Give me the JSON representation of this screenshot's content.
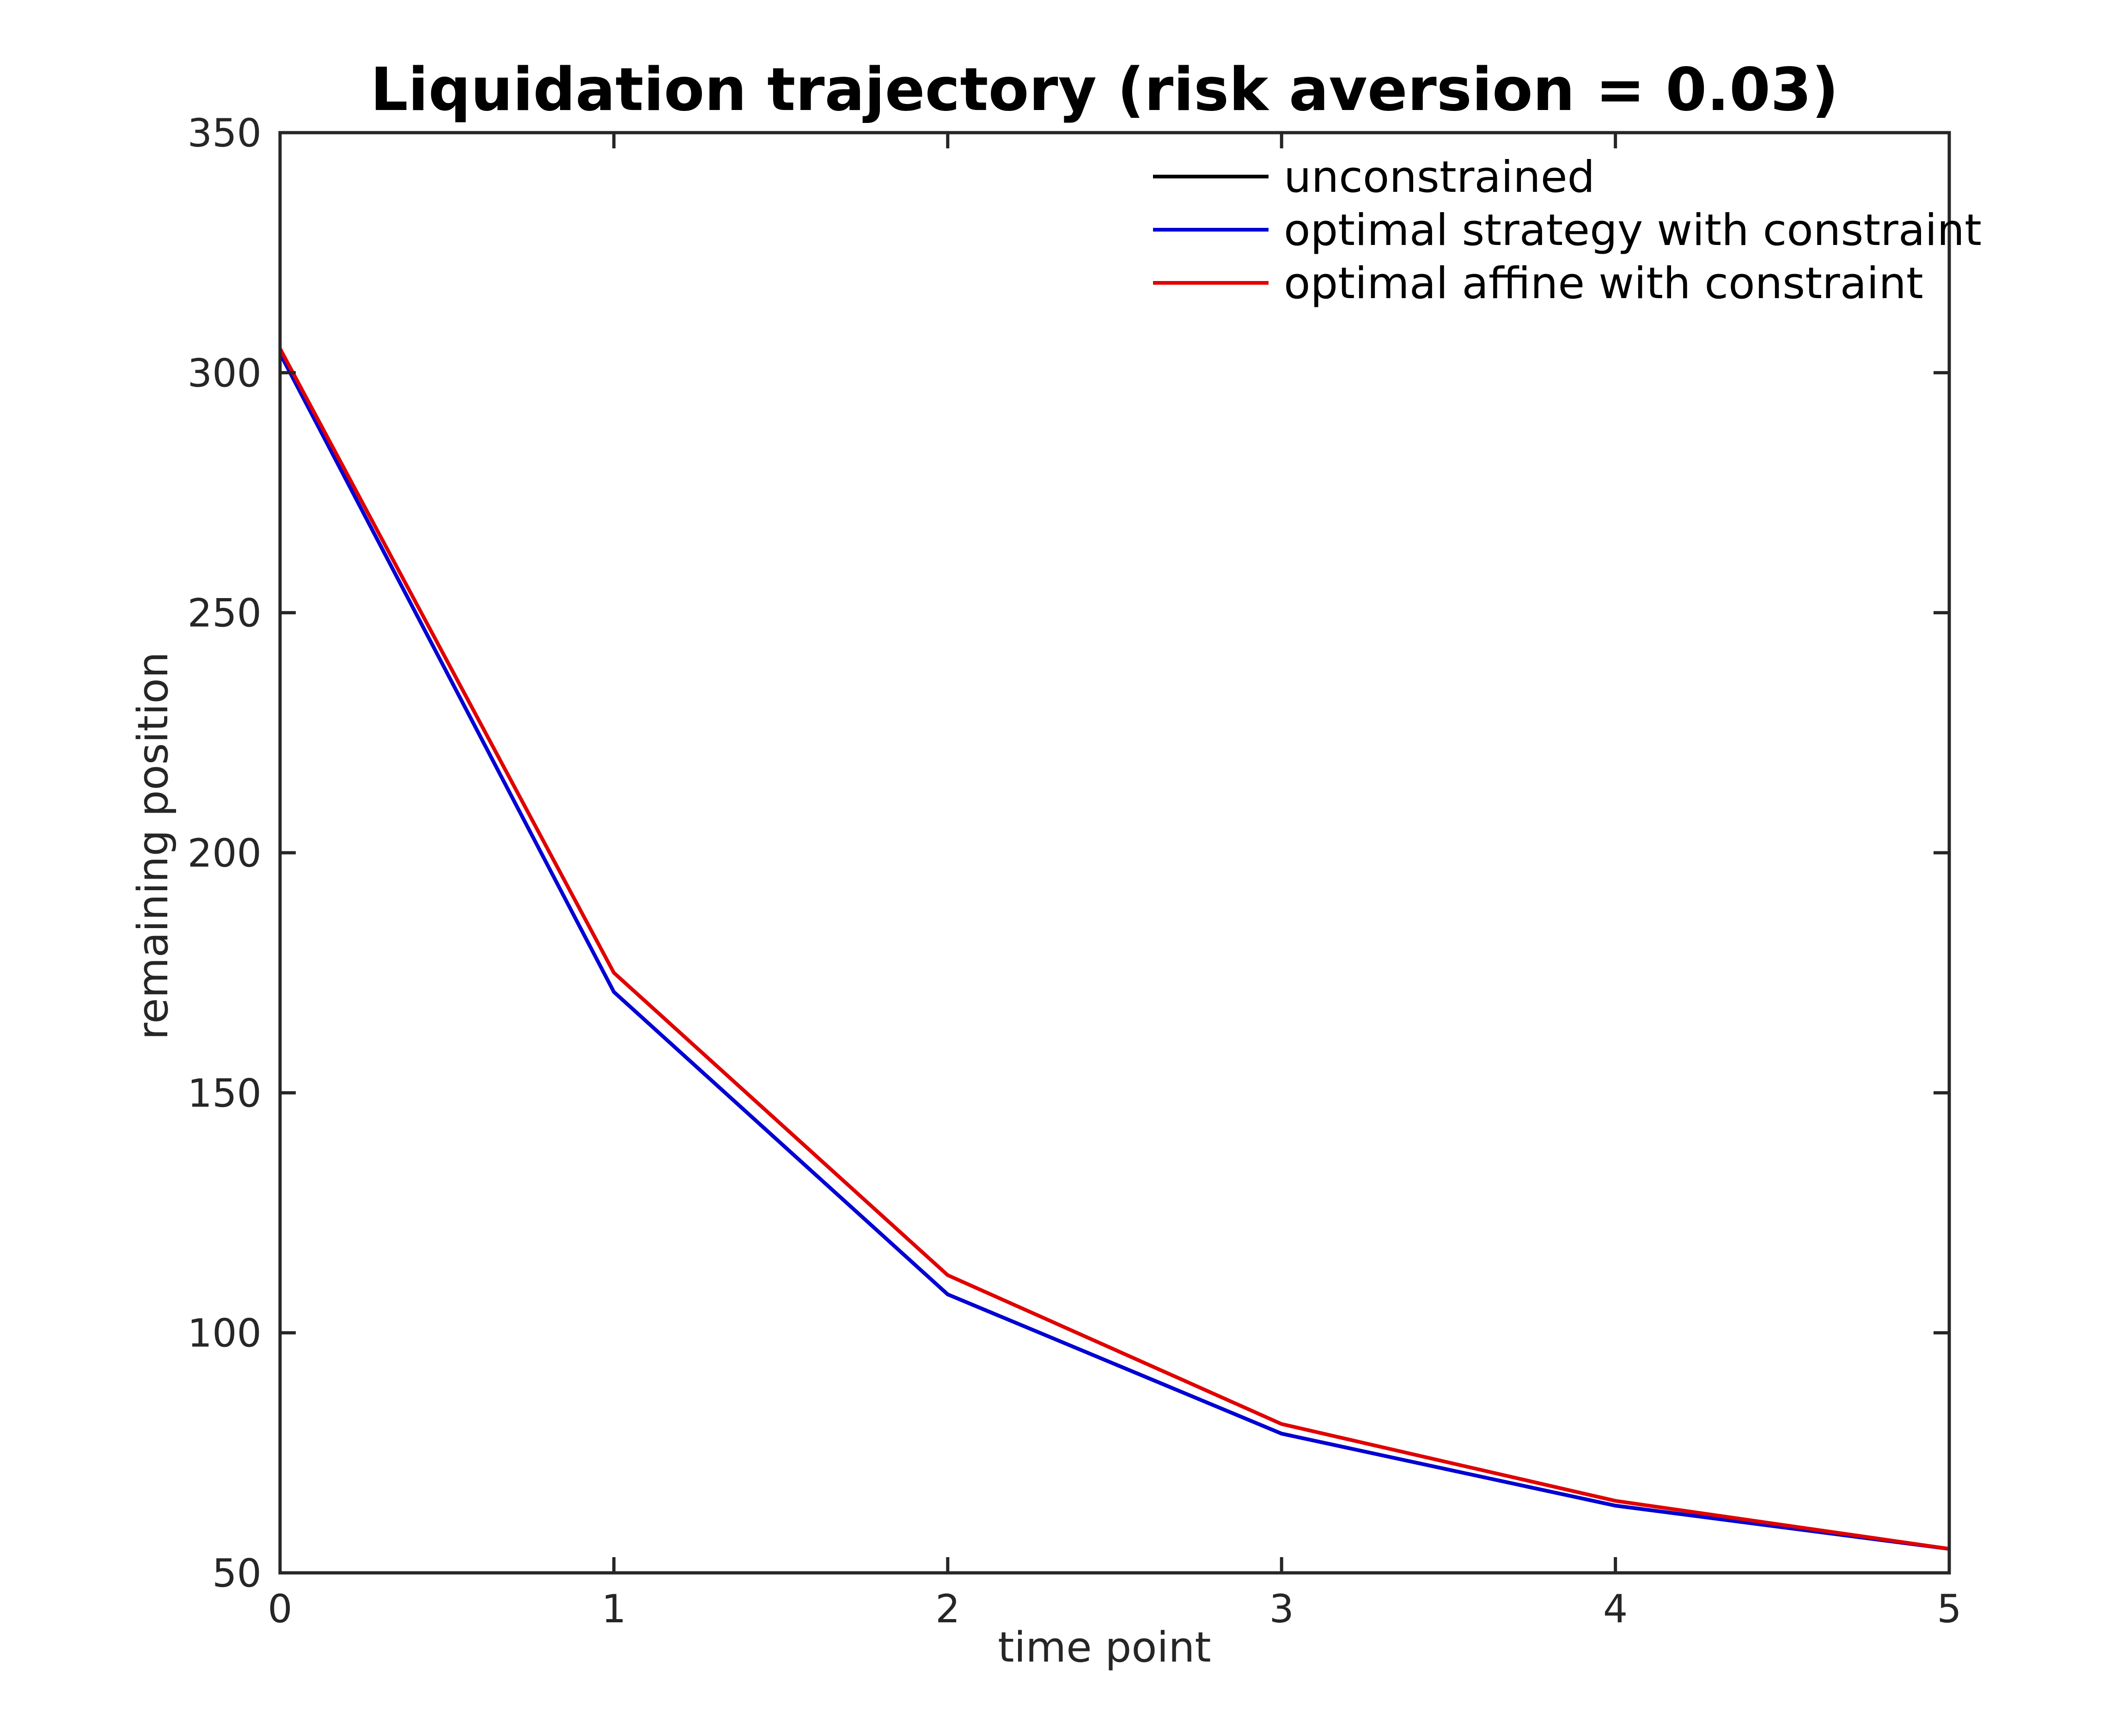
{
  "chart_data": {
    "type": "line",
    "title": "Liquidation trajectory (risk aversion = 0.03)",
    "xlabel": "time point",
    "ylabel": "remaining position",
    "xlim": [
      0,
      5
    ],
    "ylim": [
      50,
      350
    ],
    "xticks": [
      "0",
      "1",
      "2",
      "3",
      "4",
      "5"
    ],
    "yticks": [
      "50",
      "100",
      "150",
      "200",
      "250",
      "300",
      "350"
    ],
    "grid": false,
    "legend_position": "top-right",
    "x": [
      0,
      1,
      2,
      3,
      4,
      5
    ],
    "series": [
      {
        "name": "unconstrained",
        "color": "#000000",
        "values": [
          304,
          171,
          108,
          79,
          64,
          55
        ]
      },
      {
        "name": "optimal strategy with constraint",
        "color": "#0000d6",
        "values": [
          304,
          171,
          108,
          79,
          64,
          55
        ]
      },
      {
        "name": "optimal affine with constraint",
        "color": "#e00000",
        "values": [
          305,
          175,
          112,
          81,
          65,
          55
        ]
      }
    ]
  }
}
